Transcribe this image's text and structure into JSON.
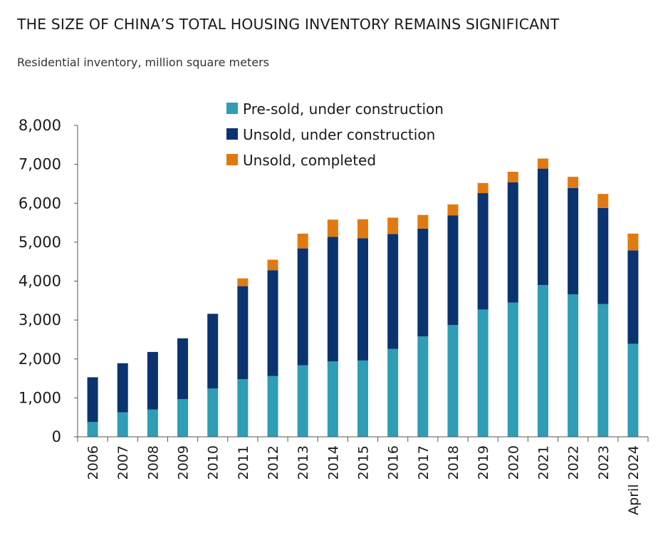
{
  "chart_data": {
    "type": "bar",
    "stacked": true,
    "title": "THE SIZE OF CHINA’S TOTAL HOUSING INVENTORY REMAINS SIGNIFICANT",
    "subtitle": "Residential inventory, million square meters",
    "xlabel": "",
    "ylabel": "",
    "ylim": [
      0,
      8000
    ],
    "yticks": [
      0,
      1000,
      2000,
      3000,
      4000,
      5000,
      6000,
      7000,
      8000
    ],
    "ytick_labels": [
      "0",
      "1,000",
      "2,000",
      "3,000",
      "4,000",
      "5,000",
      "6,000",
      "7,000",
      "8,000"
    ],
    "grid": false,
    "legend_position": "top-center",
    "categories": [
      "2006",
      "2007",
      "2008",
      "2009",
      "2010",
      "2011",
      "2012",
      "2013",
      "2014",
      "2015",
      "2016",
      "2017",
      "2018",
      "2019",
      "2020",
      "2021",
      "2022",
      "2023",
      "April 2024"
    ],
    "series": [
      {
        "name": "Pre-sold, under construction",
        "color": "#2e9db5",
        "values": [
          380,
          630,
          700,
          970,
          1240,
          1480,
          1560,
          1840,
          1940,
          1960,
          2260,
          2580,
          2870,
          3270,
          3450,
          3900,
          3660,
          3410,
          2390
        ]
      },
      {
        "name": "Unsold, under construction",
        "color": "#0b3370",
        "values": [
          1150,
          1260,
          1480,
          1560,
          1920,
          2390,
          2720,
          3000,
          3200,
          3140,
          2950,
          2770,
          2820,
          2990,
          3090,
          2990,
          2730,
          2470,
          2400
        ]
      },
      {
        "name": "Unsold, completed",
        "color": "#e07a10",
        "values": [
          0,
          0,
          0,
          0,
          0,
          200,
          270,
          380,
          440,
          490,
          420,
          350,
          280,
          260,
          270,
          260,
          290,
          360,
          430
        ]
      }
    ]
  }
}
